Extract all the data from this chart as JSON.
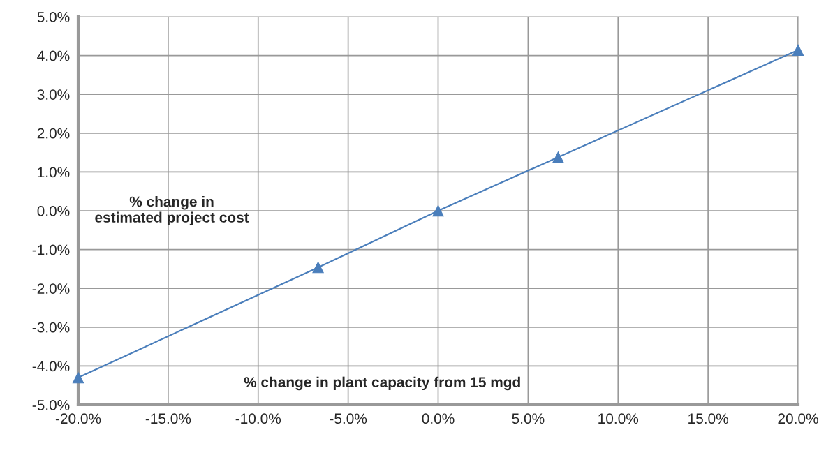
{
  "chart_data": {
    "type": "line",
    "xlabel": "% change in plant capacity from 15 mgd",
    "ylabel": "% change in estimated project cost",
    "x": [
      -20,
      -6.67,
      0,
      6.67,
      20
    ],
    "series": [
      {
        "color": "#4a7ebb",
        "values": [
          -4.3,
          -1.46,
          0,
          1.38,
          4.14
        ]
      }
    ],
    "xlim": [
      -20,
      20
    ],
    "ylim": [
      -5,
      5
    ],
    "xticks": [
      {
        "value": -20,
        "label": "-20.0%"
      },
      {
        "value": -15,
        "label": "-15.0%"
      },
      {
        "value": -10,
        "label": "-10.0%"
      },
      {
        "value": -5,
        "label": "-5.0%"
      },
      {
        "value": 0,
        "label": "0.0%"
      },
      {
        "value": 5,
        "label": "5.0%"
      },
      {
        "value": 10,
        "label": "10.0%"
      },
      {
        "value": 15,
        "label": "15.0%"
      },
      {
        "value": 20,
        "label": "20.0%"
      }
    ],
    "yticks": [
      {
        "value": -5,
        "label": "-5.0%"
      },
      {
        "value": -4,
        "label": "-4.0%"
      },
      {
        "value": -3,
        "label": "-3.0%"
      },
      {
        "value": -2,
        "label": "-2.0%"
      },
      {
        "value": -1,
        "label": "-1.0%"
      },
      {
        "value": 0,
        "label": "0.0%"
      },
      {
        "value": 1,
        "label": "1.0%"
      },
      {
        "value": 2,
        "label": "2.0%"
      },
      {
        "value": 3,
        "label": "3.0%"
      },
      {
        "value": 4,
        "label": "4.0%"
      },
      {
        "value": 5,
        "label": "5.0%"
      }
    ],
    "grid": true,
    "marker": "triangle",
    "line_style": "solid"
  }
}
